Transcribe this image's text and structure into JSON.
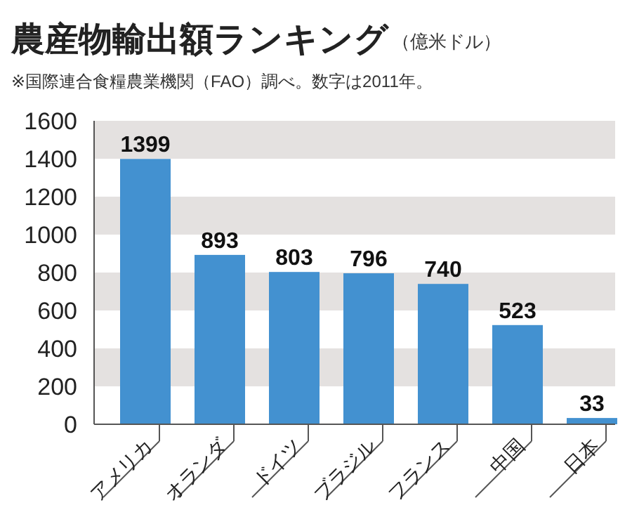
{
  "chart_data": {
    "type": "bar",
    "title": "農産物輸出額ランキング",
    "subtitle": "（億米ドル）",
    "annotations": [
      "※国際連合食糧農業機関（FAO）調べ。数字は2011年。"
    ],
    "categories": [
      "アメリカ",
      "オランダ",
      "ドイツ",
      "ブラジル",
      "フランス",
      "中国",
      "日本"
    ],
    "values": [
      1399,
      893,
      803,
      796,
      740,
      523,
      33
    ],
    "color": "#4391d0",
    "data_labels": true,
    "ylim": [
      0,
      1600
    ],
    "yticks": [
      0,
      200,
      400,
      600,
      800,
      1000,
      1200,
      1400,
      1600
    ],
    "bands": [
      {
        "axis": "y",
        "from": 200,
        "to": 400,
        "color": "#e4e1e0"
      },
      {
        "axis": "y",
        "from": 600,
        "to": 800,
        "color": "#e4e1e0"
      },
      {
        "axis": "y",
        "from": 1000,
        "to": 1200,
        "color": "#e4e1e0"
      },
      {
        "axis": "y",
        "from": 1400,
        "to": 1600,
        "color": "#e4e1e0"
      }
    ]
  }
}
